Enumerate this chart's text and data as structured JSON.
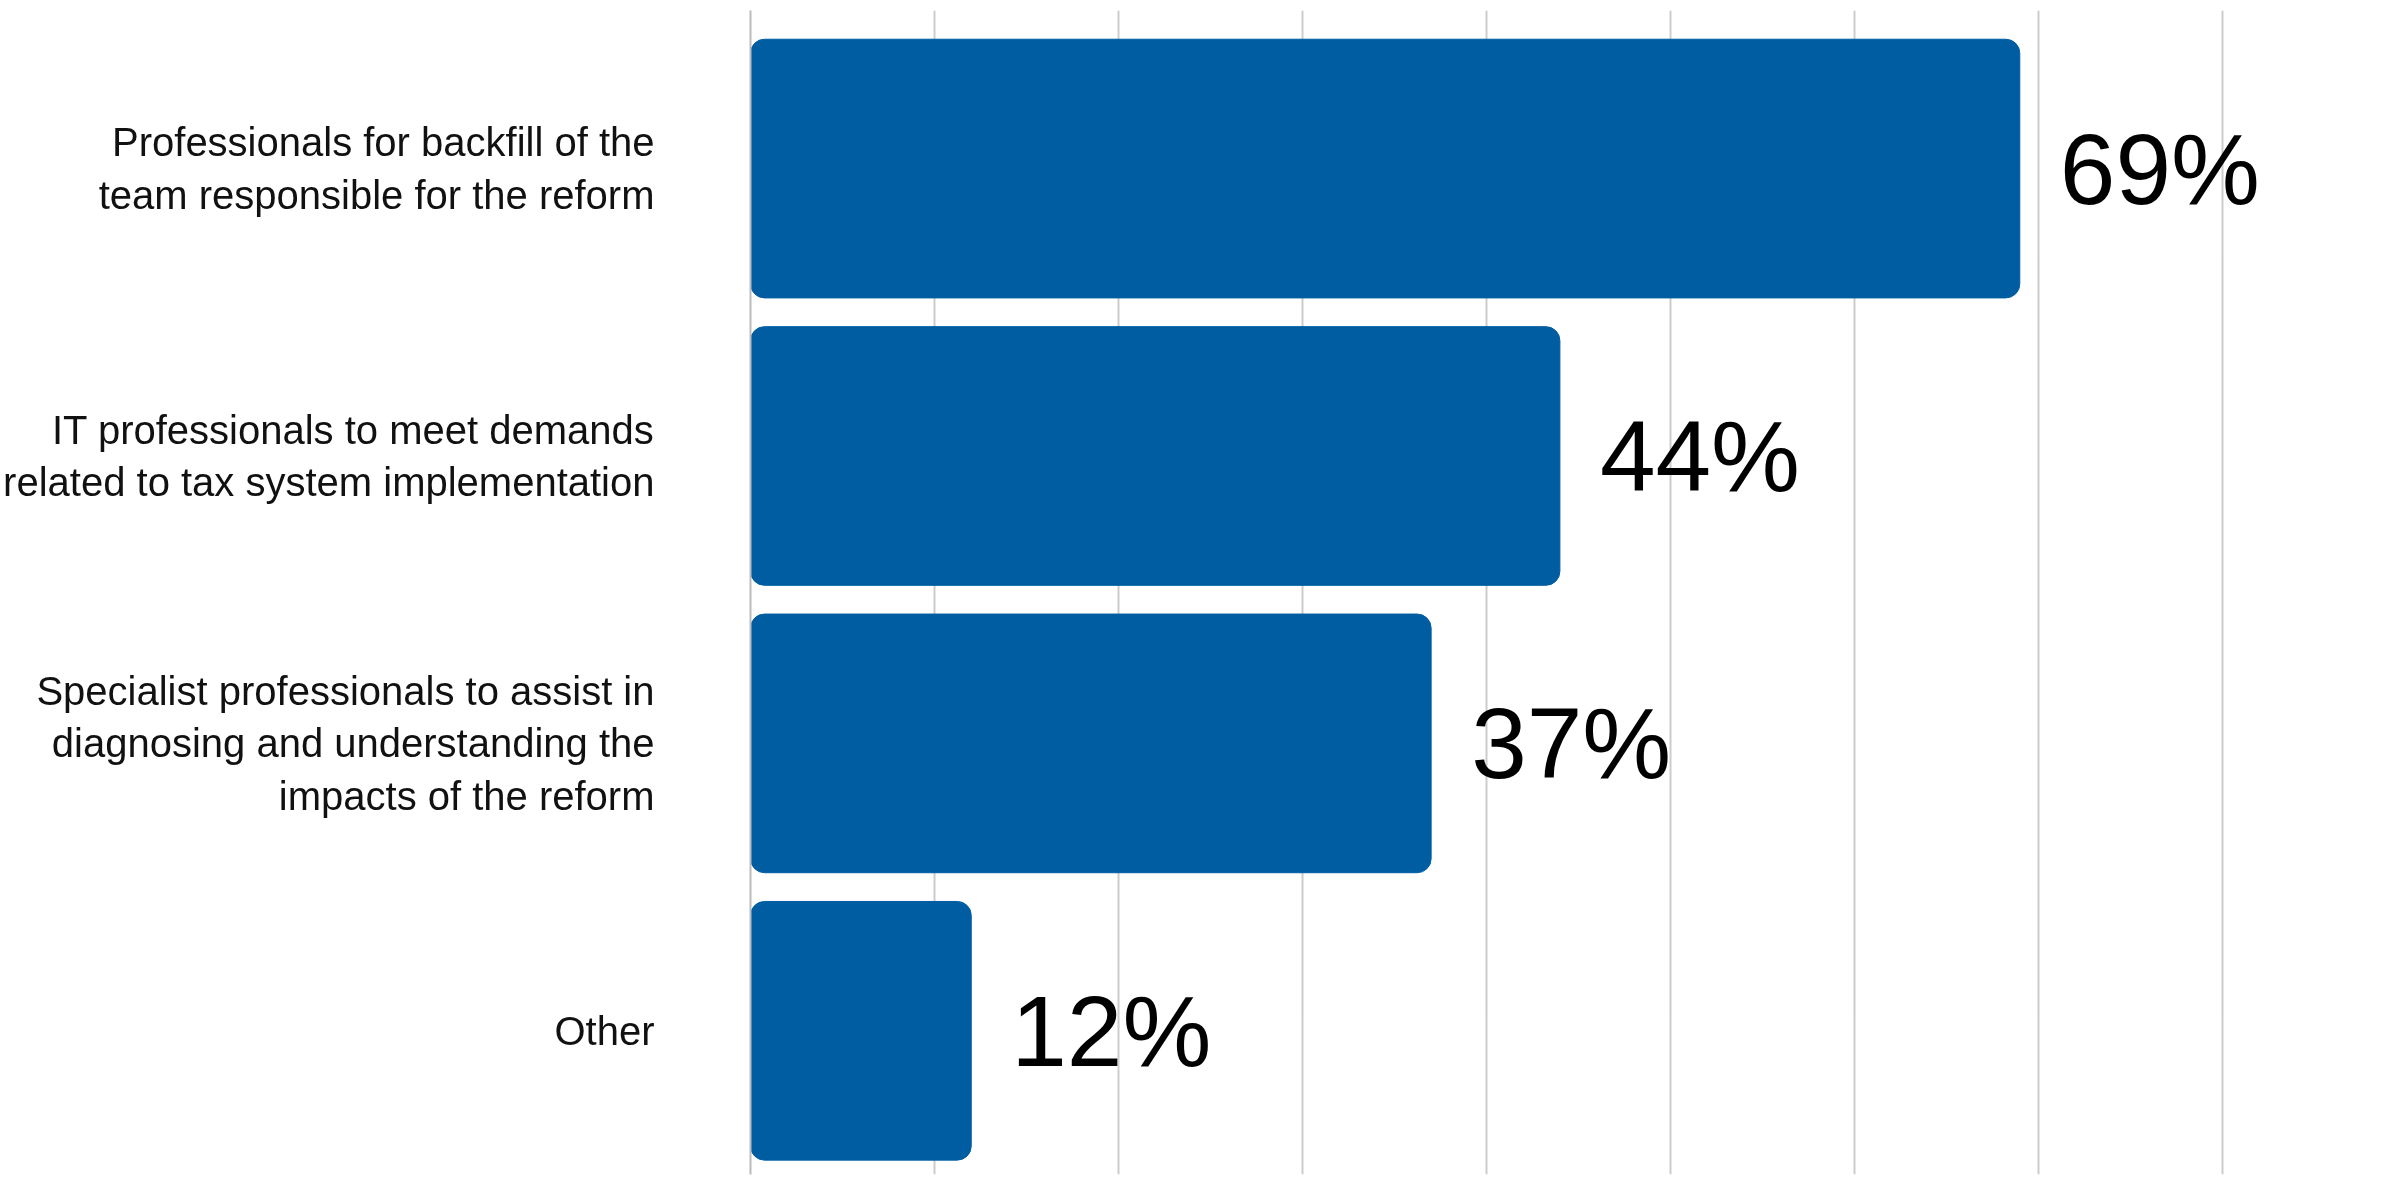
{
  "chart_data": {
    "type": "bar",
    "orientation": "horizontal",
    "categories": [
      "Professionals for backfill of the\nteam responsible for the reform",
      "IT professionals to meet demands\nrelated to tax system implementation",
      "Specialist professionals to assist in\ndiagnosing and understanding the\nimpacts of the reform",
      "Other"
    ],
    "values": [
      69,
      44,
      37,
      12
    ],
    "value_labels": [
      "69%",
      "44%",
      "37%",
      "12%"
    ],
    "color": "#005da2",
    "grid": "x",
    "tick_labels": "y"
  }
}
